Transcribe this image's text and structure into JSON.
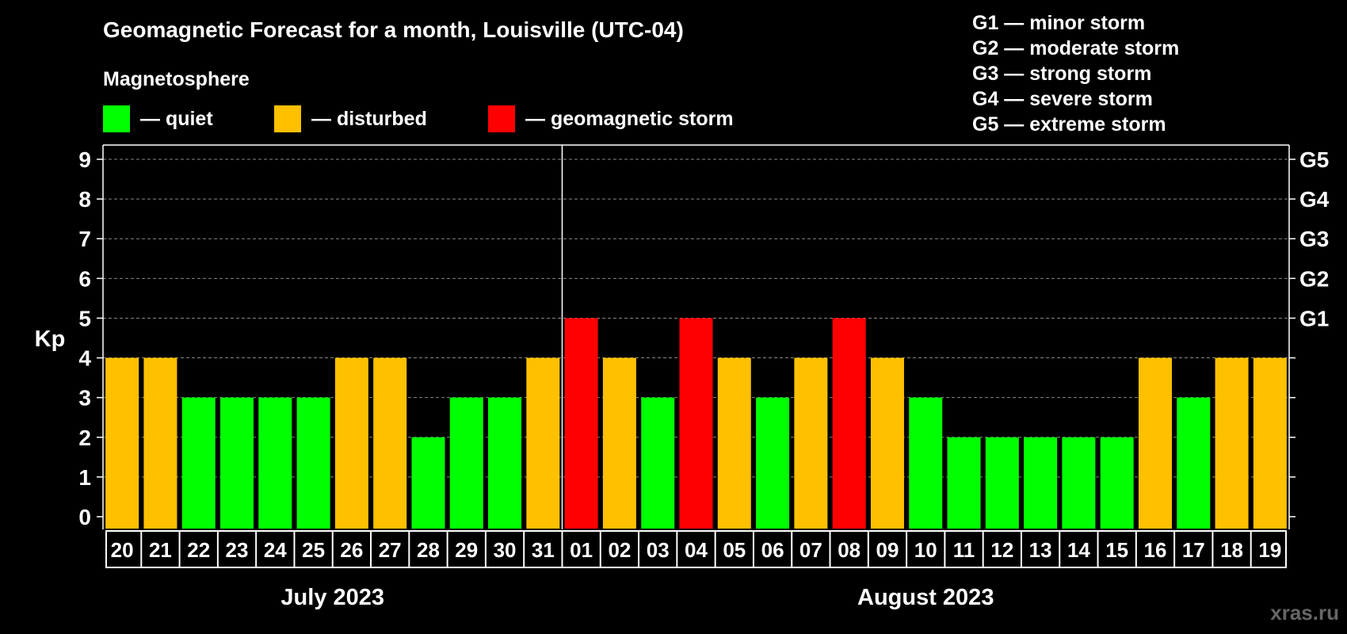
{
  "chart_data": {
    "type": "bar",
    "title": "Geomagnetic Forecast for a month, Louisville (UTC-04)",
    "ylabel": "Kp",
    "ylim": [
      0,
      9
    ],
    "yticks": [
      "0",
      "1",
      "2",
      "3",
      "4",
      "5",
      "6",
      "7",
      "8",
      "9"
    ],
    "right_ticks": [
      {
        "value": 5,
        "label": "G1"
      },
      {
        "value": 6,
        "label": "G2"
      },
      {
        "value": 7,
        "label": "G3"
      },
      {
        "value": 8,
        "label": "G4"
      },
      {
        "value": 9,
        "label": "G5"
      }
    ],
    "grid": "dashed horizontal",
    "categories": [
      "20",
      "21",
      "22",
      "23",
      "24",
      "25",
      "26",
      "27",
      "28",
      "29",
      "30",
      "31",
      "01",
      "02",
      "03",
      "04",
      "05",
      "06",
      "07",
      "08",
      "09",
      "10",
      "11",
      "12",
      "13",
      "14",
      "15",
      "16",
      "17",
      "18",
      "19"
    ],
    "values": [
      4,
      4,
      3,
      3,
      3,
      3,
      4,
      4,
      2,
      3,
      3,
      4,
      5,
      4,
      3,
      5,
      4,
      3,
      4,
      5,
      4,
      3,
      2,
      2,
      2,
      2,
      2,
      4,
      3,
      4,
      4
    ],
    "months": [
      {
        "label": "July 2023",
        "first_index": 0,
        "last_index": 11
      },
      {
        "label": "August 2023",
        "first_index": 12,
        "last_index": 30
      }
    ],
    "legend": {
      "heading": "Magnetosphere",
      "items": [
        {
          "label": "— quiet",
          "color": "#00ff00"
        },
        {
          "label": "— disturbed",
          "color": "#ffc000"
        },
        {
          "label": "— geomagnetic storm",
          "color": "#ff0000"
        }
      ]
    },
    "storm_scale": [
      "G1 — minor storm",
      "G2 — moderate storm",
      "G3 — strong storm",
      "G4 — severe storm",
      "G5 — extreme storm"
    ],
    "colors": {
      "quiet": "#00ff00",
      "disturbed": "#ffc000",
      "storm": "#ff0000"
    }
  },
  "watermark": "xras.ru"
}
